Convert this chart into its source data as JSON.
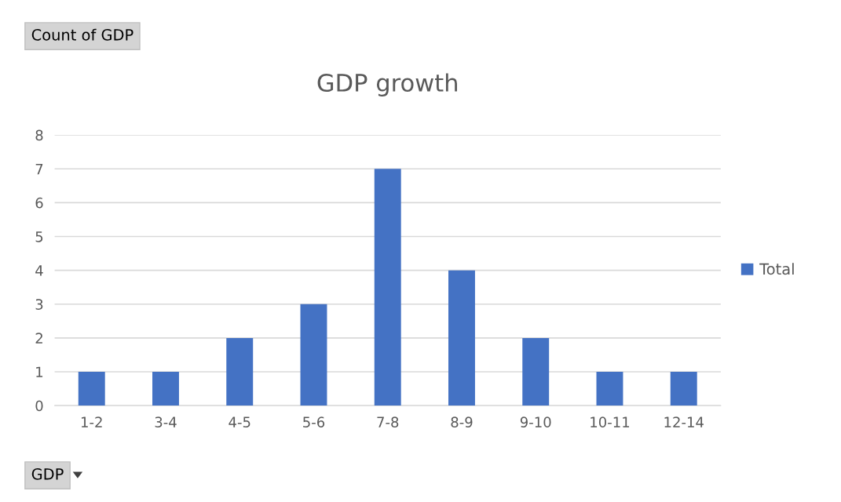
{
  "chart_data": {
    "type": "bar",
    "title": "GDP growth",
    "categories": [
      "1-2",
      "3-4",
      "4-5",
      "5-6",
      "7-8",
      "8-9",
      "9-10",
      "10-11",
      "12-14"
    ],
    "series": [
      {
        "name": "Total",
        "color": "#4472c4",
        "values": [
          1,
          1,
          2,
          3,
          7,
          4,
          2,
          1,
          1
        ]
      }
    ],
    "ylim": [
      0,
      8
    ],
    "yticks": [
      0,
      1,
      2,
      3,
      4,
      5,
      6,
      7,
      8
    ],
    "grid": "y",
    "legend": "right",
    "annotations": [
      "Count of GDP",
      "GDP"
    ]
  }
}
